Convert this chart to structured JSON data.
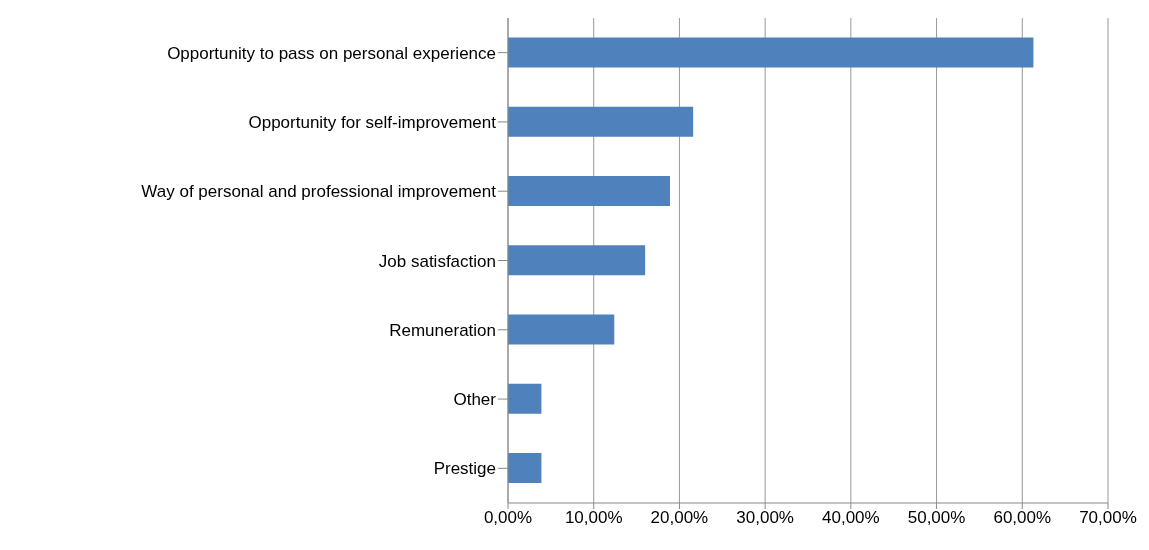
{
  "chart_data": {
    "type": "bar",
    "orientation": "horizontal",
    "categories": [
      "Opportunity to pass on personal experience",
      "Opportunity for self-improvement",
      "Way of personal and professional improvement",
      "Job satisfaction",
      "Remuneration",
      "Other",
      "Prestige"
    ],
    "values": [
      61.3,
      21.6,
      18.9,
      16.0,
      12.4,
      3.9,
      3.9
    ],
    "color": "#4f81bd",
    "xlim": [
      0,
      70
    ],
    "xticks": [
      {
        "value": 0,
        "label": "0,00%"
      },
      {
        "value": 10,
        "label": "10,00%"
      },
      {
        "value": 20,
        "label": "20,00%"
      },
      {
        "value": 30,
        "label": "30,00%"
      },
      {
        "value": 40,
        "label": "40,00%"
      },
      {
        "value": 50,
        "label": "50,00%"
      },
      {
        "value": 60,
        "label": "60,00%"
      },
      {
        "value": 70,
        "label": "70,00%"
      }
    ],
    "grid": "x"
  }
}
